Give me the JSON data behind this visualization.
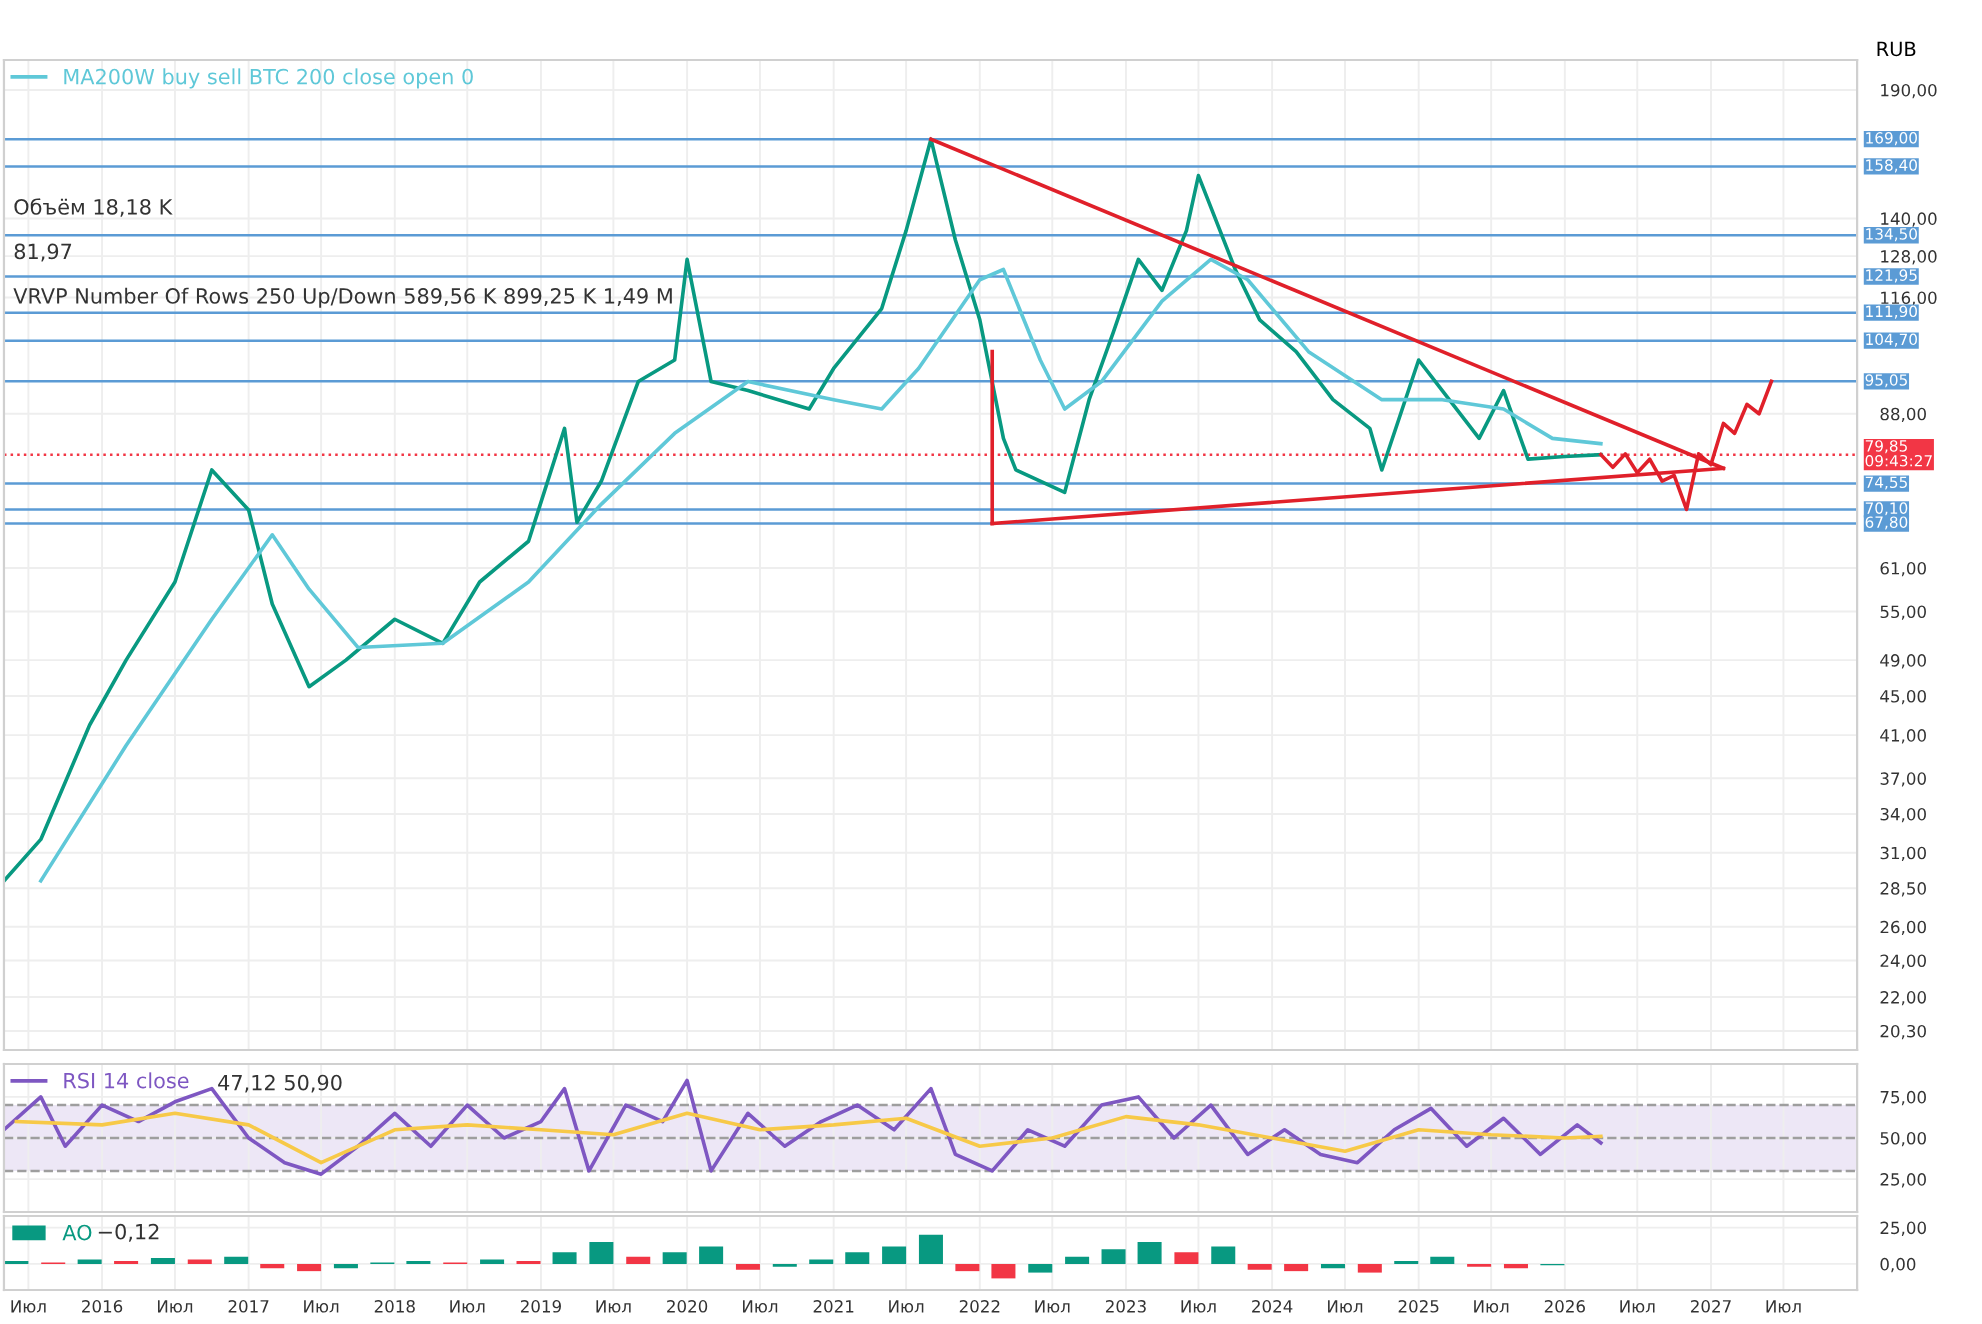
{
  "chart_data": [
    {
      "type": "line",
      "ylabel": "RUB",
      "log": true,
      "grid": true,
      "legend": "top left",
      "tick_labels": "y",
      "xlim": [
        "2015-05",
        "2028-01"
      ],
      "xticks": [
        {
          "value": "2015-07",
          "label": null
        },
        {
          "value": "2016-01",
          "label": null
        },
        {
          "value": "2016-07",
          "label": null
        },
        {
          "value": "2017-01",
          "label": null
        },
        {
          "value": "2017-07",
          "label": null
        },
        {
          "value": "2018-01",
          "label": null
        },
        {
          "value": "2018-07",
          "label": null
        },
        {
          "value": "2019-01",
          "label": null
        },
        {
          "value": "2019-07",
          "label": null
        },
        {
          "value": "2020-01",
          "label": null
        },
        {
          "value": "2020-07",
          "label": null
        },
        {
          "value": "2021-01",
          "label": null
        },
        {
          "value": "2021-07",
          "label": null
        },
        {
          "value": "2022-01",
          "label": null
        },
        {
          "value": "2022-07",
          "label": null
        },
        {
          "value": "2023-01",
          "label": null
        },
        {
          "value": "2023-07",
          "label": null
        },
        {
          "value": "2024-01",
          "label": null
        },
        {
          "value": "2024-07",
          "label": null
        },
        {
          "value": "2025-01",
          "label": null
        },
        {
          "value": "2025-07",
          "label": null
        },
        {
          "value": "2026-01",
          "label": null
        },
        {
          "value": "2026-07",
          "label": null
        },
        {
          "value": "2027-01",
          "label": null
        },
        {
          "value": "2027-07",
          "label": null
        }
      ],
      "ylim": [
        19.4,
        204
      ],
      "yticks": [
        {
          "value": 20.3,
          "label": "20,30"
        },
        {
          "value": 22,
          "label": "22,00"
        },
        {
          "value": 24,
          "label": "24,00"
        },
        {
          "value": 26,
          "label": "26,00"
        },
        {
          "value": 28.5,
          "label": "28,50"
        },
        {
          "value": 31,
          "label": "31,00"
        },
        {
          "value": 34,
          "label": "34,00"
        },
        {
          "value": 37,
          "label": "37,00"
        },
        {
          "value": 41,
          "label": "41,00"
        },
        {
          "value": 45,
          "label": "45,00"
        },
        {
          "value": 49,
          "label": "49,00"
        },
        {
          "value": 55,
          "label": "55,00"
        },
        {
          "value": 61,
          "label": "61,00"
        },
        {
          "value": 88,
          "label": "88,00"
        },
        {
          "value": 116,
          "label": "116,00"
        },
        {
          "value": 128,
          "label": "128,00"
        },
        {
          "value": 140,
          "label": "140,00"
        },
        {
          "value": 190,
          "label": "190,00"
        }
      ],
      "series": [
        {
          "color": "#089981",
          "x": [
            "2015-05",
            "2015-08",
            "2015-12",
            "2016-03",
            "2016-07",
            "2016-10",
            "2017-01",
            "2017-03",
            "2017-06",
            "2017-09",
            "2018-01",
            "2018-05",
            "2018-08",
            "2018-12",
            "2019-03",
            "2019-04",
            "2019-06",
            "2019-09",
            "2019-12",
            "2020-01",
            "2020-03",
            "2020-06",
            "2020-11",
            "2021-01",
            "2021-05",
            "2021-07",
            "2021-09",
            "2021-11",
            "2022-01",
            "2022-03",
            "2022-04",
            "2022-08",
            "2022-10",
            "2022-12",
            "2023-02",
            "2023-04",
            "2023-06",
            "2023-07",
            "2023-10",
            "2023-12",
            "2024-03",
            "2024-06",
            "2024-09",
            "2024-10",
            "2025-01",
            "2025-03",
            "2025-06",
            "2025-08",
            "2025-10",
            "2026-01",
            "2026-04"
          ],
          "values": [
            29,
            32,
            42,
            49,
            59,
            77,
            70,
            56,
            46,
            49,
            54,
            51,
            59,
            65,
            85,
            68,
            75,
            95,
            100,
            127,
            95,
            93,
            89,
            98,
            113,
            136,
            169,
            133,
            110,
            83,
            77,
            73,
            91,
            107,
            127,
            118,
            136,
            155,
            124,
            110,
            102,
            91,
            85,
            77,
            100,
            93,
            83,
            93,
            79,
            79.5,
            79.85
          ]
        },
        {
          "name": "MA200W buy sell BTC 200 close open 0",
          "color": "#5fc8d8",
          "x": [
            "2015-08",
            "2016-03",
            "2016-10",
            "2017-03",
            "2017-06",
            "2017-10",
            "2018-05",
            "2018-12",
            "2019-06",
            "2019-12",
            "2020-06",
            "2021-01",
            "2021-05",
            "2021-08",
            "2022-01",
            "2022-03",
            "2022-06",
            "2022-08",
            "2022-11",
            "2023-04",
            "2023-08",
            "2023-11",
            "2024-04",
            "2024-10",
            "2025-03",
            "2025-08",
            "2025-12",
            "2026-04"
          ],
          "values": [
            29,
            40,
            54,
            66,
            58,
            50.5,
            51,
            59,
            71,
            84,
            95,
            91,
            89,
            98,
            121,
            124,
            100,
            89,
            95,
            115,
            127,
            121,
            102,
            91,
            91,
            89,
            83,
            81.97
          ]
        },
        {
          "color": "#e0202a",
          "x": [
            "2021-09",
            "2027-02"
          ],
          "values": [
            169,
            77.3
          ]
        },
        {
          "color": "#e0202a",
          "x": [
            "2022-02",
            "2027-02"
          ],
          "values": [
            67.8,
            77.3
          ]
        },
        {
          "color": "#e0202a",
          "x": [
            "2022-02",
            "2022-02"
          ],
          "values": [
            102,
            67.8
          ]
        },
        {
          "color": "#e0202a",
          "x": [
            "2026-04",
            "2026-05",
            "2026-06",
            "2026-07",
            "2026-08",
            "2026-09",
            "2026-10",
            "2026-11",
            "2026-12",
            "2027-01",
            "2027-02",
            "2027-03",
            "2027-04",
            "2027-05",
            "2027-06"
          ],
          "values": [
            79.85,
            77.5,
            80,
            76.5,
            79,
            75,
            76,
            70.1,
            80,
            78,
            86,
            84,
            90,
            88,
            95.05
          ]
        }
      ],
      "ref_lines": [
        {
          "axis": "y",
          "value": 169,
          "label": "169,00",
          "color": "#5b9bd5"
        },
        {
          "axis": "y",
          "value": 158.4,
          "label": "158,40",
          "color": "#5b9bd5"
        },
        {
          "axis": "y",
          "value": 134.5,
          "label": "134,50",
          "color": "#5b9bd5"
        },
        {
          "axis": "y",
          "value": 121.95,
          "label": "121,95",
          "color": "#5b9bd5"
        },
        {
          "axis": "y",
          "value": 111.9,
          "label": "111,90",
          "color": "#5b9bd5"
        },
        {
          "axis": "y",
          "value": 104.7,
          "label": "104,70",
          "color": "#5b9bd5"
        },
        {
          "axis": "y",
          "value": 95.05,
          "label": "95,05",
          "color": "#5b9bd5"
        },
        {
          "axis": "y",
          "value": 79.85,
          "label": "79,85\n09:43:27",
          "color": "#f23645",
          "line_style": "dotted"
        },
        {
          "axis": "y",
          "value": 74.55,
          "label": "74,55",
          "color": "#5b9bd5"
        },
        {
          "axis": "y",
          "value": 70.1,
          "label": "70,10",
          "color": "#5b9bd5"
        },
        {
          "axis": "y",
          "value": 67.8,
          "label": "67,80",
          "color": "#5b9bd5"
        }
      ],
      "annotations": [
        "Объём 18,18 K",
        "81,97",
        "VRVP Number Of Rows 250 Up/Down 589,56 K 899,25 K 1,49 M"
      ]
    },
    {
      "type": "line",
      "grid": true,
      "legend": "top left",
      "tick_labels": "y",
      "xlim": [
        "2015-05",
        "2028-01"
      ],
      "xticks": [
        {
          "value": "2015-07",
          "label": null
        },
        {
          "value": "2016-01",
          "label": null
        },
        {
          "value": "2016-07",
          "label": null
        },
        {
          "value": "2017-01",
          "label": null
        },
        {
          "value": "2017-07",
          "label": null
        },
        {
          "value": "2018-01",
          "label": null
        },
        {
          "value": "2018-07",
          "label": null
        },
        {
          "value": "2019-01",
          "label": null
        },
        {
          "value": "2019-07",
          "label": null
        },
        {
          "value": "2020-01",
          "label": null
        },
        {
          "value": "2020-07",
          "label": null
        },
        {
          "value": "2021-01",
          "label": null
        },
        {
          "value": "2021-07",
          "label": null
        },
        {
          "value": "2022-01",
          "label": null
        },
        {
          "value": "2022-07",
          "label": null
        },
        {
          "value": "2023-01",
          "label": null
        },
        {
          "value": "2023-07",
          "label": null
        },
        {
          "value": "2024-01",
          "label": null
        },
        {
          "value": "2024-07",
          "label": null
        },
        {
          "value": "2025-01",
          "label": null
        },
        {
          "value": "2025-07",
          "label": null
        },
        {
          "value": "2026-01",
          "label": null
        },
        {
          "value": "2026-07",
          "label": null
        },
        {
          "value": "2027-01",
          "label": null
        },
        {
          "value": "2027-07",
          "label": null
        }
      ],
      "ylim": [
        5,
        95
      ],
      "yticks": [
        {
          "value": 25,
          "label": "25,00"
        },
        {
          "value": 50,
          "label": "50,00"
        },
        {
          "value": 75,
          "label": "75,00"
        }
      ],
      "bands": [
        {
          "axis": "y",
          "from": 30,
          "to": 70,
          "color": "#ede7f6"
        }
      ],
      "ref_lines": [
        {
          "axis": "y",
          "value": 70,
          "color": "#9e9e9e",
          "line_style": "dashed"
        },
        {
          "axis": "y",
          "value": 50,
          "color": "#9e9e9e",
          "line_style": "dashed"
        },
        {
          "axis": "y",
          "value": 30,
          "color": "#9e9e9e",
          "line_style": "dashed"
        }
      ],
      "series": [
        {
          "name": "RSI 14 close",
          "color": "#7e57c2",
          "x": [
            "2015-05",
            "2015-08",
            "2015-10",
            "2016-01",
            "2016-04",
            "2016-07",
            "2016-10",
            "2017-01",
            "2017-04",
            "2017-07",
            "2017-10",
            "2018-01",
            "2018-04",
            "2018-07",
            "2018-10",
            "2019-01",
            "2019-03",
            "2019-05",
            "2019-08",
            "2019-11",
            "2020-01",
            "2020-03",
            "2020-06",
            "2020-09",
            "2020-12",
            "2021-03",
            "2021-06",
            "2021-09",
            "2021-11",
            "2022-02",
            "2022-05",
            "2022-08",
            "2022-11",
            "2023-02",
            "2023-05",
            "2023-08",
            "2023-11",
            "2024-02",
            "2024-05",
            "2024-08",
            "2024-11",
            "2025-02",
            "2025-05",
            "2025-08",
            "2025-11",
            "2026-02",
            "2026-04"
          ],
          "values": [
            55,
            75,
            45,
            70,
            60,
            72,
            80,
            50,
            35,
            28,
            45,
            65,
            45,
            70,
            50,
            60,
            80,
            30,
            70,
            60,
            85,
            30,
            65,
            45,
            60,
            70,
            55,
            80,
            40,
            30,
            55,
            45,
            70,
            75,
            50,
            70,
            40,
            55,
            40,
            35,
            55,
            68,
            45,
            62,
            40,
            58,
            47
          ]
        },
        {
          "color": "#f7c948",
          "x": [
            "2015-06",
            "2016-01",
            "2016-07",
            "2017-01",
            "2017-07",
            "2018-01",
            "2018-07",
            "2019-01",
            "2019-07",
            "2020-01",
            "2020-07",
            "2021-01",
            "2021-07",
            "2022-01",
            "2022-07",
            "2023-01",
            "2023-07",
            "2024-01",
            "2024-07",
            "2025-01",
            "2025-07",
            "2026-01",
            "2026-04"
          ],
          "values": [
            60,
            58,
            65,
            58,
            35,
            55,
            58,
            55,
            52,
            65,
            55,
            58,
            62,
            45,
            50,
            63,
            58,
            50,
            42,
            55,
            52,
            50,
            51
          ]
        }
      ],
      "annotations": [
        "47,12 50,90"
      ]
    },
    {
      "type": "bar",
      "grid": true,
      "legend": "top left",
      "xlim": [
        "2015-05",
        "2028-01"
      ],
      "xticks": [
        {
          "value": "2015-07",
          "label": "Июл"
        },
        {
          "value": "2016-01",
          "label": "2016"
        },
        {
          "value": "2016-07",
          "label": "Июл"
        },
        {
          "value": "2017-01",
          "label": "2017"
        },
        {
          "value": "2017-07",
          "label": "Июл"
        },
        {
          "value": "2018-01",
          "label": "2018"
        },
        {
          "value": "2018-07",
          "label": "Июл"
        },
        {
          "value": "2019-01",
          "label": "2019"
        },
        {
          "value": "2019-07",
          "label": "Июл"
        },
        {
          "value": "2020-01",
          "label": "2020"
        },
        {
          "value": "2020-07",
          "label": "Июл"
        },
        {
          "value": "2021-01",
          "label": "2021"
        },
        {
          "value": "2021-07",
          "label": "Июл"
        },
        {
          "value": "2022-01",
          "label": "2022"
        },
        {
          "value": "2022-07",
          "label": "Июл"
        },
        {
          "value": "2023-01",
          "label": "2023"
        },
        {
          "value": "2023-07",
          "label": "Июл"
        },
        {
          "value": "2024-01",
          "label": "2024"
        },
        {
          "value": "2024-07",
          "label": "Июл"
        },
        {
          "value": "2025-01",
          "label": "2025"
        },
        {
          "value": "2025-07",
          "label": "Июл"
        },
        {
          "value": "2026-01",
          "label": "2026"
        },
        {
          "value": "2026-07",
          "label": "Июл"
        },
        {
          "value": "2027-01",
          "label": "2027"
        },
        {
          "value": "2027-07",
          "label": "Июл"
        }
      ],
      "ylim": [
        -18,
        33
      ],
      "yticks": [
        {
          "value": 0,
          "label": "0,00"
        },
        {
          "value": 25,
          "label": "25,00"
        }
      ],
      "series": [
        {
          "name": "AO",
          "x": [
            "2015-06",
            "2015-09",
            "2015-12",
            "2016-03",
            "2016-06",
            "2016-09",
            "2016-12",
            "2017-03",
            "2017-06",
            "2017-09",
            "2017-12",
            "2018-03",
            "2018-06",
            "2018-09",
            "2018-12",
            "2019-03",
            "2019-06",
            "2019-09",
            "2019-12",
            "2020-03",
            "2020-06",
            "2020-09",
            "2020-12",
            "2021-03",
            "2021-06",
            "2021-09",
            "2021-12",
            "2022-03",
            "2022-06",
            "2022-09",
            "2022-12",
            "2023-03",
            "2023-06",
            "2023-09",
            "2023-12",
            "2024-03",
            "2024-06",
            "2024-09",
            "2024-12",
            "2025-03",
            "2025-06",
            "2025-09",
            "2025-12"
          ],
          "values": [
            2,
            1,
            3,
            2,
            4,
            3,
            5,
            -3,
            -5,
            -3,
            1,
            2,
            1,
            3,
            2,
            8,
            15,
            5,
            8,
            12,
            -4,
            -2,
            3,
            8,
            12,
            20,
            -5,
            -10,
            -6,
            5,
            10,
            15,
            8,
            12,
            -4,
            -5,
            -3,
            -6,
            2,
            5,
            -2,
            -3,
            -1
          ],
          "colors": [
            "#089981",
            "#f23645",
            "#089981",
            "#f23645",
            "#089981",
            "#f23645",
            "#089981",
            "#f23645",
            "#f23645",
            "#089981",
            "#089981",
            "#089981",
            "#f23645",
            "#089981",
            "#f23645",
            "#089981",
            "#089981",
            "#f23645",
            "#089981",
            "#089981",
            "#f23645",
            "#089981",
            "#089981",
            "#089981",
            "#089981",
            "#089981",
            "#f23645",
            "#f23645",
            "#089981",
            "#089981",
            "#089981",
            "#089981",
            "#f23645",
            "#089981",
            "#f23645",
            "#f23645",
            "#089981",
            "#f23645",
            "#089981",
            "#089981",
            "#f23645",
            "#f23645",
            "#089981"
          ]
        }
      ],
      "annotations": [
        "−0,12"
      ]
    }
  ]
}
